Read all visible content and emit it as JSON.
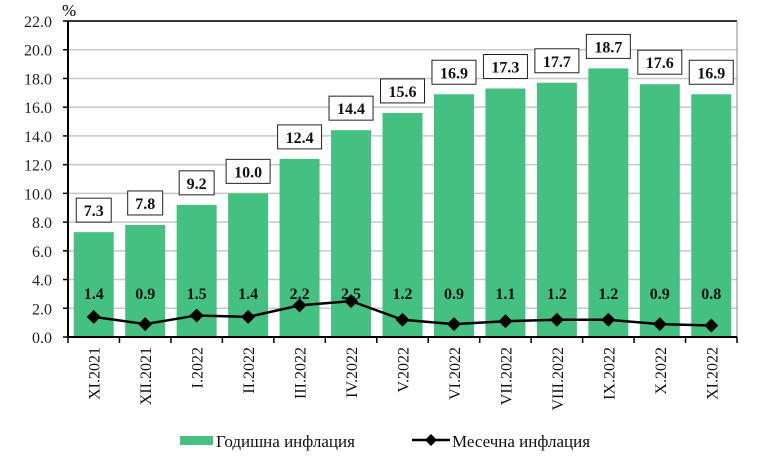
{
  "chart_data": {
    "type": "bar",
    "title": "",
    "xlabel": "",
    "ylabel": "%",
    "ylim": [
      0,
      22
    ],
    "yticks": [
      "0.0",
      "2.0",
      "4.0",
      "6.0",
      "8.0",
      "10.0",
      "12.0",
      "14.0",
      "16.0",
      "18.0",
      "20.0",
      "22.0"
    ],
    "grid": true,
    "legend_position": "bottom",
    "categories": [
      "XI.2021",
      "XII.2021",
      "I.2022",
      "II.2022",
      "III.2022",
      "IV.2022",
      "V.2022",
      "VI.2022",
      "VII.2022",
      "VIII.2022",
      "IX.2022",
      "X.2022",
      "XI.2022"
    ],
    "series": [
      {
        "name": "Годишна инфлация",
        "type": "bar",
        "color": "#44c080",
        "values": [
          7.3,
          7.8,
          9.2,
          10.0,
          12.4,
          14.4,
          15.6,
          16.9,
          17.3,
          17.7,
          18.7,
          17.6,
          16.9
        ],
        "labels": [
          "7.3",
          "7.8",
          "9.2",
          "10.0",
          "12.4",
          "14.4",
          "15.6",
          "16.9",
          "17.3",
          "17.7",
          "18.7",
          "17.6",
          "16.9"
        ]
      },
      {
        "name": "Месечна инфлация",
        "type": "line",
        "color": "#000000",
        "marker": "diamond",
        "values": [
          1.4,
          0.9,
          1.5,
          1.4,
          2.2,
          2.5,
          1.2,
          0.9,
          1.1,
          1.2,
          1.2,
          0.9,
          0.8
        ],
        "labels": [
          "1.4",
          "0.9",
          "1.5",
          "1.4",
          "2.2",
          "2.5",
          "1.2",
          "0.9",
          "1.1",
          "1.2",
          "1.2",
          "0.9",
          "0.8"
        ]
      }
    ]
  },
  "legend": {
    "annual_label": "Годишна инфлация",
    "monthly_label": "Месечна инфлация"
  },
  "axis": {
    "y_unit": "%"
  }
}
